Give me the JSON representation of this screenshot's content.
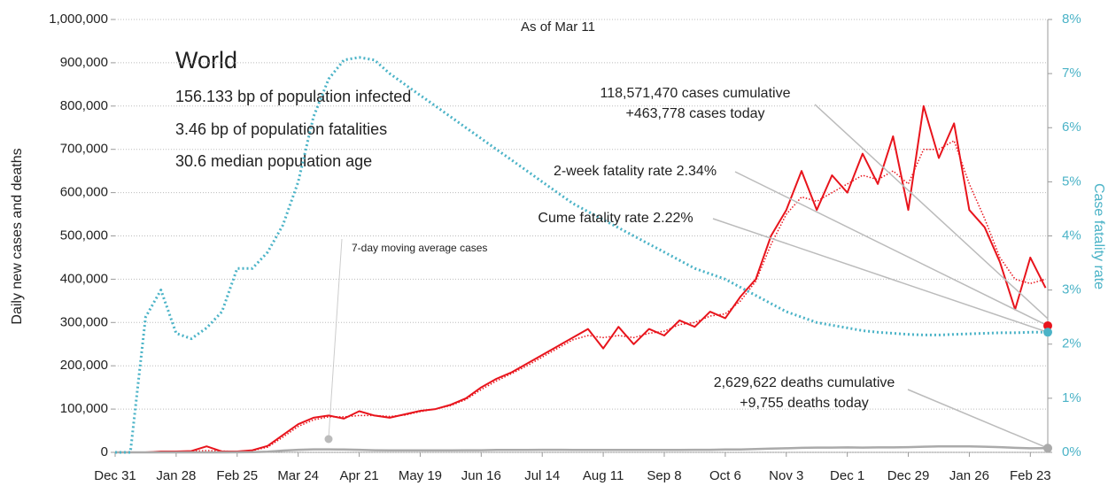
{
  "chart_data": {
    "type": "line",
    "title": "World",
    "subtitle": "As of Mar 11",
    "info": [
      "156.133 bp of population infected",
      "3.46 bp of population fatalities",
      "30.6 median population age"
    ],
    "y_label": "Daily new cases and deaths",
    "y2_label": "Case fatality rate",
    "x": [
      0,
      7,
      14,
      21,
      28,
      35,
      42,
      49,
      56,
      63,
      70,
      77,
      84,
      91,
      98,
      105,
      112,
      119,
      126,
      133,
      140,
      147,
      154,
      161,
      168,
      175,
      182,
      189,
      196,
      203,
      210,
      217,
      224,
      231,
      238,
      245,
      252,
      259,
      266,
      273,
      280,
      287,
      294,
      301,
      308,
      315,
      322,
      329,
      336,
      343,
      350,
      357,
      364,
      371,
      378,
      385,
      392,
      399,
      406,
      413,
      420,
      427
    ],
    "xlim": [
      0,
      428
    ],
    "xticks": [
      {
        "value": 0,
        "label": "Dec 31"
      },
      {
        "value": 28,
        "label": "Jan 28"
      },
      {
        "value": 56,
        "label": "Feb 25"
      },
      {
        "value": 84,
        "label": "Mar 24"
      },
      {
        "value": 112,
        "label": "Apr 21"
      },
      {
        "value": 140,
        "label": "May 19"
      },
      {
        "value": 168,
        "label": "Jun 16"
      },
      {
        "value": 196,
        "label": "Jul 14"
      },
      {
        "value": 224,
        "label": "Aug 11"
      },
      {
        "value": 252,
        "label": "Sep 8"
      },
      {
        "value": 280,
        "label": "Oct 6"
      },
      {
        "value": 308,
        "label": "Nov 3"
      },
      {
        "value": 336,
        "label": "Dec 1"
      },
      {
        "value": 364,
        "label": "Dec 29"
      },
      {
        "value": 392,
        "label": "Jan 26"
      },
      {
        "value": 420,
        "label": "Feb 23"
      }
    ],
    "ylim": [
      0,
      1000000
    ],
    "yticks": [
      {
        "value": 0,
        "label": "0"
      },
      {
        "value": 100000,
        "label": "100,000"
      },
      {
        "value": 200000,
        "label": "200,000"
      },
      {
        "value": 300000,
        "label": "300,000"
      },
      {
        "value": 400000,
        "label": "400,000"
      },
      {
        "value": 500000,
        "label": "500,000"
      },
      {
        "value": 600000,
        "label": "600,000"
      },
      {
        "value": 700000,
        "label": "700,000"
      },
      {
        "value": 800000,
        "label": "800,000"
      },
      {
        "value": 900000,
        "label": "900,000"
      },
      {
        "value": 1000000,
        "label": "1,000,000"
      }
    ],
    "y2lim": [
      0,
      8
    ],
    "y2ticks": [
      {
        "value": 0,
        "label": "0%"
      },
      {
        "value": 1,
        "label": "1%"
      },
      {
        "value": 2,
        "label": "2%"
      },
      {
        "value": 3,
        "label": "3%"
      },
      {
        "value": 4,
        "label": "4%"
      },
      {
        "value": 5,
        "label": "5%"
      },
      {
        "value": 6,
        "label": "6%"
      },
      {
        "value": 7,
        "label": "7%"
      },
      {
        "value": 8,
        "label": "8%"
      }
    ],
    "grid": true,
    "series": [
      {
        "name": "7-day moving average cases",
        "color": "#e8141c",
        "style": "dotted",
        "width": 1.5,
        "values": [
          0,
          0,
          100,
          1500,
          2000,
          2500,
          4000,
          3000,
          2000,
          4000,
          12000,
          35000,
          60000,
          75000,
          82000,
          82000,
          85000,
          85000,
          83000,
          86000,
          94000,
          100000,
          108000,
          122000,
          145000,
          165000,
          182000,
          200000,
          220000,
          240000,
          260000,
          270000,
          265000,
          270000,
          265000,
          275000,
          280000,
          295000,
          300000,
          315000,
          320000,
          350000,
          395000,
          480000,
          550000,
          590000,
          580000,
          600000,
          620000,
          640000,
          630000,
          650000,
          620000,
          700000,
          700000,
          720000,
          620000,
          540000,
          450000,
          400000,
          390000,
          400000
        ]
      },
      {
        "color": "#e8141c",
        "style": "solid",
        "width": 2,
        "values": [
          0,
          0,
          100,
          2000,
          2000,
          3000,
          14000,
          2000,
          2000,
          5000,
          15000,
          40000,
          65000,
          80000,
          85000,
          78000,
          95000,
          85000,
          80000,
          88000,
          96000,
          100000,
          110000,
          125000,
          150000,
          170000,
          185000,
          205000,
          225000,
          245000,
          265000,
          285000,
          240000,
          290000,
          250000,
          285000,
          270000,
          305000,
          290000,
          325000,
          310000,
          360000,
          400000,
          500000,
          560000,
          650000,
          560000,
          640000,
          600000,
          690000,
          620000,
          730000,
          560000,
          800000,
          680000,
          760000,
          560000,
          520000,
          440000,
          330000,
          450000,
          380000
        ]
      },
      {
        "color": "#aaaaaa",
        "style": "solid",
        "width": 2.5,
        "values": [
          0,
          0,
          0,
          100,
          100,
          100,
          100,
          100,
          200,
          500,
          1500,
          4000,
          6000,
          7000,
          7000,
          6500,
          6000,
          5000,
          4500,
          4500,
          4500,
          4500,
          4500,
          5000,
          5000,
          5500,
          5500,
          5500,
          6000,
          6000,
          5500,
          5500,
          5500,
          5500,
          5500,
          5500,
          5500,
          5500,
          6000,
          6000,
          6500,
          6500,
          7500,
          8500,
          9500,
          10500,
          11000,
          11000,
          11500,
          11000,
          11500,
          11500,
          12000,
          13000,
          14000,
          14000,
          14000,
          13000,
          12000,
          10500,
          9500,
          9755
        ]
      },
      {
        "color": "#4bb3c7",
        "style": "dotted",
        "width": 3,
        "axis": "y2",
        "values": [
          0,
          0,
          2.5,
          3.0,
          2.2,
          2.1,
          2.3,
          2.6,
          3.4,
          3.4,
          3.7,
          4.2,
          5.0,
          6.2,
          6.9,
          7.25,
          7.3,
          7.25,
          7.0,
          6.8,
          6.6,
          6.4,
          6.2,
          6.0,
          5.8,
          5.6,
          5.4,
          5.2,
          5.0,
          4.8,
          4.6,
          4.45,
          4.3,
          4.15,
          4.0,
          3.85,
          3.7,
          3.55,
          3.4,
          3.3,
          3.2,
          3.05,
          2.9,
          2.75,
          2.6,
          2.5,
          2.4,
          2.35,
          2.3,
          2.25,
          2.22,
          2.2,
          2.18,
          2.17,
          2.17,
          2.18,
          2.19,
          2.2,
          2.21,
          2.21,
          2.22,
          2.22
        ]
      }
    ],
    "annotations": [
      {
        "lines": [
          "118,571,470 cases cumulative",
          "+463,778 cases today"
        ]
      },
      {
        "lines": [
          "2-week fatality rate 2.34%"
        ],
        "value": 2.34,
        "axis": "y2",
        "color": "#e8141c"
      },
      {
        "lines": [
          "Cume fatality rate 2.22%"
        ],
        "value": 2.22,
        "axis": "y2",
        "color": "#4bb3c7"
      },
      {
        "lines": [
          "2,629,622 deaths cumulative",
          "+9,755 deaths today"
        ],
        "value": 9755,
        "axis": "y",
        "color": "#aaaaaa"
      }
    ]
  }
}
